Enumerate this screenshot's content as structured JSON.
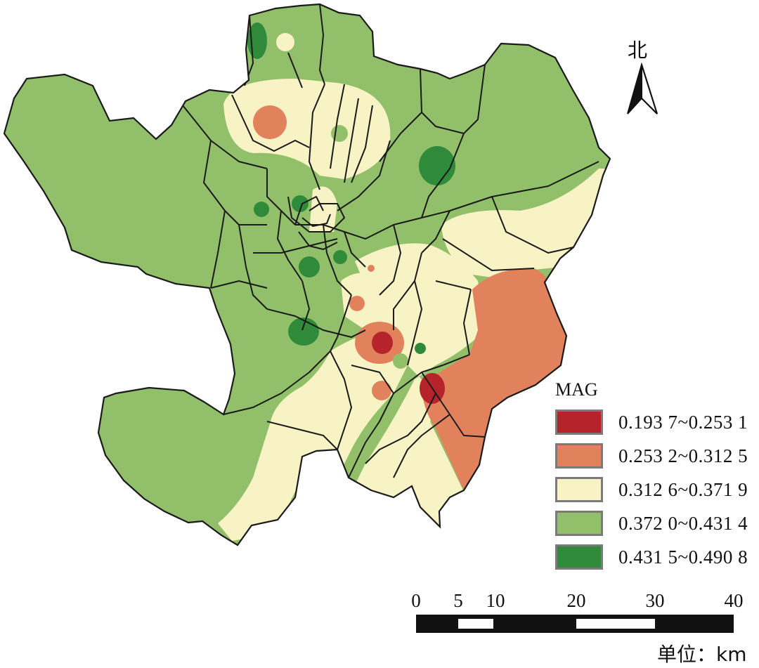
{
  "north_arrow": {
    "label": "北",
    "icon": "north-arrow-icon"
  },
  "legend": {
    "title": "MAG",
    "items": [
      {
        "label": "0.193 7~0.253 1",
        "color": "#b7232a"
      },
      {
        "label": "0.253 2~0.312 5",
        "color": "#e2825c"
      },
      {
        "label": "0.312 6~0.371 9",
        "color": "#f8f3c4"
      },
      {
        "label": "0.372 0~0.431 4",
        "color": "#92c06a"
      },
      {
        "label": "0.431 5~0.490 8",
        "color": "#2f8a3a"
      }
    ]
  },
  "scale_bar": {
    "ticks": [
      "0",
      "5",
      "10",
      "20",
      "30",
      "40"
    ],
    "unit": "单位：km"
  }
}
